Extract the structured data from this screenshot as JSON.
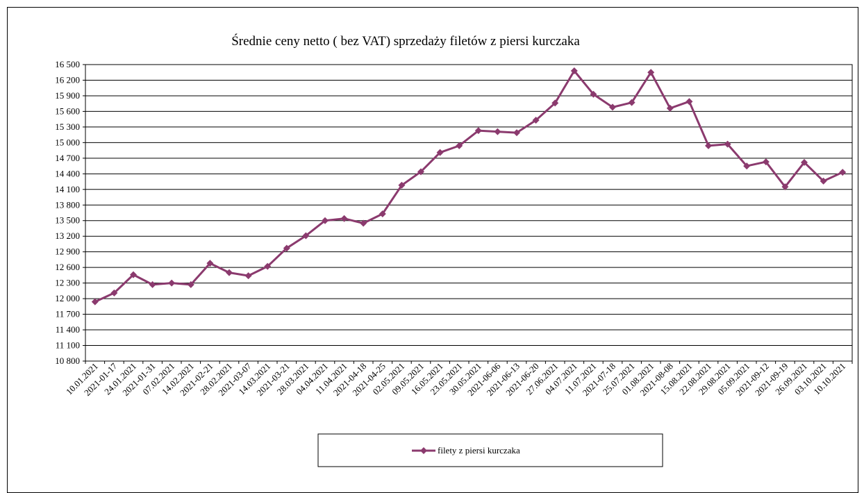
{
  "chart_data": {
    "type": "line",
    "title": "Średnie ceny netto ( bez VAT) sprzedaży filetów z piersi kurczaka",
    "xlabel": "",
    "ylabel": "",
    "ylim": [
      10800,
      16500
    ],
    "yticks": [
      10800,
      11100,
      11400,
      11700,
      12000,
      12300,
      12600,
      12900,
      13200,
      13500,
      13800,
      14100,
      14400,
      14700,
      15000,
      15300,
      15600,
      15900,
      16200,
      16500
    ],
    "ytick_labels": [
      "10 800",
      "11 100",
      "11 400",
      "11 700",
      "12 000",
      "12 300",
      "12 600",
      "12 900",
      "13 200",
      "13 500",
      "13 800",
      "14 100",
      "14 400",
      "14 700",
      "15 000",
      "15 300",
      "15 600",
      "15 900",
      "16 200",
      "16 500"
    ],
    "grid": true,
    "legend_position": "bottom",
    "categories": [
      "10.01.2021",
      "2021-01-17",
      "24.01.2021",
      "2021-01-31",
      "07.02.2021",
      "14.02.2021",
      "2021-02-21",
      "28.02.2021",
      "2021-03-07",
      "14.03.2021",
      "2021-03-21",
      "28.03.2021",
      "04.04.2021",
      "11.04.2021",
      "2021-04-18",
      "2021-04-25",
      "02.05.2021",
      "09.05.2021",
      "16.05.2021",
      "23.05.2021",
      "30.05.2021",
      "2021-06-06",
      "2021-06-13",
      "2021-06-20",
      "27.06.2021",
      "04.07.2021",
      "11.07.2021",
      "2021-07-18",
      "25.07.2021",
      "01.08.2021",
      "2021-08-08",
      "15.08.2021",
      "22.08.2021",
      "29.08.2021",
      "05.09.2021",
      "2021-09-12",
      "2021-09-19",
      "26.09.2021",
      "03.10.2021",
      "10.10.2021"
    ],
    "series": [
      {
        "name": "filety z piersi kurczaka",
        "color": "#8B3A6E",
        "marker": "diamond",
        "values": [
          11940,
          12110,
          12460,
          12270,
          12300,
          12270,
          12680,
          12500,
          12440,
          12620,
          12970,
          13210,
          13500,
          13540,
          13450,
          13630,
          14180,
          14440,
          14810,
          14940,
          15230,
          15210,
          15190,
          15430,
          15760,
          16380,
          15930,
          15680,
          15770,
          16350,
          15660,
          15790,
          14940,
          14970,
          14550,
          14630,
          14150,
          14620,
          14260,
          14430
        ]
      }
    ]
  }
}
